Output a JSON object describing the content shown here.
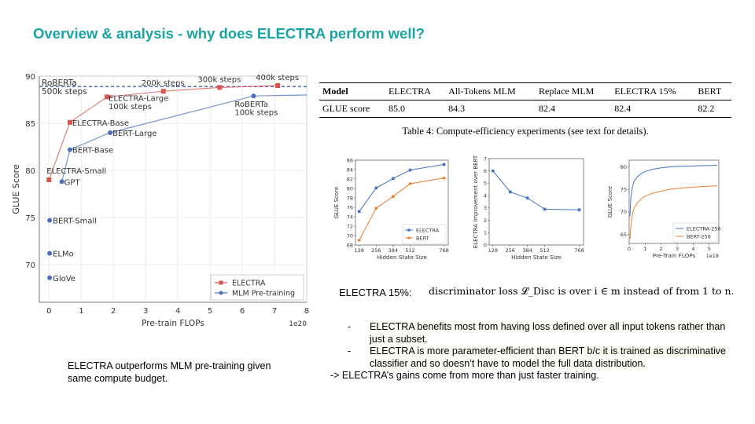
{
  "slide": {
    "title": "Overview & analysis - why does ELECTRA perform well?",
    "left_note": "ELECTRA outperforms MLM pre-training given same compute budget.",
    "electra15_label": "ELECTRA  15%:",
    "formula": "discriminator loss 𝓛_Disc is over i ∈ m instead of from 1 to n.",
    "bullets": [
      "ELECTRA benefits most from having loss defined over all input tokens rather than just a subset.",
      "ELECTRA is more parameter-efficient than BERT b/c it is trained as discriminative classifier and so doesn’t have to model the full data distribution."
    ],
    "bullet_dash": "-",
    "conclusion": "-> ELECTRA’s gains come from more than just faster training."
  },
  "table": {
    "headers": [
      "Model",
      "ELECTRA",
      "All-Tokens MLM",
      "Replace MLM",
      "ELECTRA 15%",
      "BERT"
    ],
    "row_label": "GLUE score",
    "values": [
      "85.0",
      "84.3",
      "82.4",
      "82.4",
      "82.2"
    ],
    "caption": "Table 4: Compute-efficiency experiments (see text for details)."
  },
  "colors": {
    "title": "#1aa3a3",
    "electra_red": "#d9534f",
    "mlm_blue": "#4a6fc4",
    "blue": "#4472c4",
    "orange": "#ed7d31"
  },
  "chart_data": [
    {
      "id": "main",
      "type": "line",
      "xlabel": "Pre-train FLOPs",
      "ylabel": "GLUE Score",
      "x_multiplier": "1e20",
      "xlim": [
        -0.3,
        8
      ],
      "ylim": [
        66,
        90
      ],
      "xticks": [
        "0",
        "1",
        "2",
        "3",
        "4",
        "5",
        "6",
        "7",
        "8"
      ],
      "yticks": [
        "70",
        "75",
        "80",
        "85",
        "90"
      ],
      "roberta_line_y": 88.9,
      "roberta_line_label": "RoBERTa\n500k steps",
      "legend": "bottom-right",
      "series": [
        {
          "name": "ELECTRA",
          "color": "#d9534f",
          "marker": "square",
          "x": [
            0,
            0.65,
            1.8,
            3.55,
            5.3,
            7.1
          ],
          "y": [
            79,
            85.1,
            87.8,
            88.4,
            88.8,
            89.0
          ]
        },
        {
          "name": "MLM Pre-training",
          "color": "#4a6fc4",
          "marker": "circle",
          "x": [
            0.4,
            0.65,
            1.9,
            6.35,
            8
          ],
          "y": [
            78.8,
            82.2,
            84.0,
            87.9,
            88.0
          ]
        }
      ],
      "standalone_points": [
        {
          "label": "ELMo",
          "x": 0.02,
          "y": 71.2
        },
        {
          "label": "GloVe",
          "x": 0.02,
          "y": 68.6
        },
        {
          "label": "BERT-Small",
          "x": 0.02,
          "y": 74.7
        }
      ],
      "annotations": [
        {
          "text": "200k steps",
          "x": 3.55,
          "y": 88.4
        },
        {
          "text": "300k steps",
          "x": 5.3,
          "y": 88.8
        },
        {
          "text": "400k steps",
          "x": 7.1,
          "y": 89.0
        },
        {
          "text": "ELECTRA-Large\n100k steps",
          "x": 1.8,
          "y": 87.8
        },
        {
          "text": "RoBERTa\n100k steps",
          "x": 6.35,
          "y": 87.9
        },
        {
          "text": "ELECTRA-Base",
          "x": 0.65,
          "y": 85.1
        },
        {
          "text": "BERT-Large",
          "x": 1.9,
          "y": 84.0
        },
        {
          "text": "BERT-Base",
          "x": 0.65,
          "y": 82.2
        },
        {
          "text": "ELECTRA-Small",
          "x": 0,
          "y": 79
        },
        {
          "text": "GPT",
          "x": 0.4,
          "y": 78.8
        }
      ]
    },
    {
      "id": "glue_vs_hidden",
      "type": "line",
      "xlabel": "Hidden State Size",
      "ylabel": "GLUE Score",
      "categories": [
        "128",
        "256",
        "384",
        "512",
        "768"
      ],
      "x": [
        128,
        256,
        384,
        512,
        768
      ],
      "xlim": [
        100,
        800
      ],
      "ylim": [
        68,
        86
      ],
      "yticks": [
        "68",
        "70",
        "72",
        "74",
        "76",
        "78",
        "80",
        "82",
        "84",
        "86"
      ],
      "legend": "bottom-right",
      "series": [
        {
          "name": "ELECTRA",
          "color": "#4472c4",
          "marker": "square",
          "values": [
            75.1,
            80.1,
            82.1,
            83.9,
            85.1
          ]
        },
        {
          "name": "BERT",
          "color": "#ed7d31",
          "marker": "circle",
          "values": [
            69.0,
            75.8,
            78.3,
            81.0,
            82.2
          ]
        }
      ]
    },
    {
      "id": "improvement",
      "type": "line",
      "xlabel": "Hidden State Size",
      "ylabel": "ELECTRA improvement over BERT",
      "x": [
        128,
        256,
        384,
        512,
        768
      ],
      "xlim": [
        100,
        800
      ],
      "ylim": [
        0,
        7
      ],
      "yticks": [
        "0",
        "1",
        "2",
        "3",
        "4",
        "5",
        "6",
        "7"
      ],
      "xticks": [
        "128",
        "256",
        "384",
        "512",
        "768"
      ],
      "series": [
        {
          "name": "",
          "color": "#4472c4",
          "marker": "square",
          "values": [
            6.0,
            4.3,
            3.8,
            2.9,
            2.85
          ]
        }
      ]
    },
    {
      "id": "flops_curve",
      "type": "line",
      "xlabel": "Pre-Train FLOPs",
      "ylabel": "GLUE Score",
      "x_multiplier": "1e18",
      "xlim": [
        0,
        5.6
      ],
      "ylim": [
        63,
        81.5
      ],
      "xticks": [
        "0",
        "1",
        "2",
        "3",
        "4",
        "5"
      ],
      "yticks": [
        "65",
        "70",
        "75",
        "80"
      ],
      "legend": "bottom-right",
      "series": [
        {
          "name": "ELECTRA-256",
          "color": "#4472c4",
          "x": [
            0.05,
            0.1,
            0.2,
            0.3,
            0.5,
            0.8,
            1.0,
            1.5,
            2.0,
            2.5,
            3.0,
            3.5,
            4.0,
            4.5,
            5.0,
            5.5
          ],
          "y": [
            69,
            73,
            75.5,
            76.7,
            77.8,
            78.6,
            79.0,
            79.5,
            79.8,
            80.0,
            80.1,
            80.2,
            80.2,
            80.3,
            80.3,
            80.4
          ]
        },
        {
          "name": "BERT-256",
          "color": "#ed7d31",
          "x": [
            0.05,
            0.1,
            0.2,
            0.3,
            0.5,
            0.8,
            1.0,
            1.5,
            2.0,
            2.5,
            3.0,
            3.5,
            4.0,
            4.5,
            5.0,
            5.5
          ],
          "y": [
            64,
            66.5,
            69.5,
            70.8,
            72.0,
            73.0,
            73.5,
            74.2,
            74.6,
            75.0,
            75.2,
            75.4,
            75.5,
            75.6,
            75.7,
            75.8
          ]
        }
      ]
    }
  ]
}
